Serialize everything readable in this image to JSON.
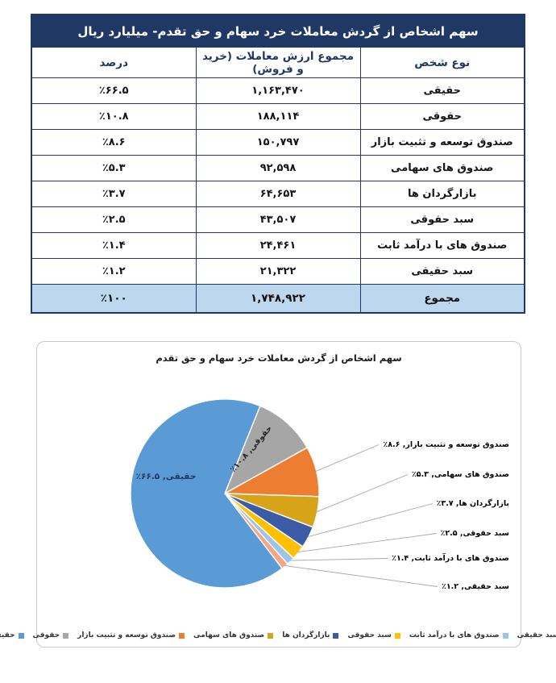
{
  "table": {
    "title": "سهم اشخاص از گردش معاملات خرد سهام و حق تقدم- میلیارد ریال",
    "headers": {
      "type": "نوع شخص",
      "value": "مجموع ارزش معاملات (خرید و فروش)",
      "percent": "درصد"
    },
    "rows": [
      {
        "type": "حقیقی",
        "value": "۱,۱۶۳,۴۷۰",
        "percent": "٪۶۶.۵"
      },
      {
        "type": "حقوقی",
        "value": "۱۸۸,۱۱۴",
        "percent": "٪۱۰.۸"
      },
      {
        "type": "صندوق توسعه و تثبیت بازار",
        "value": "۱۵۰,۷۹۷",
        "percent": "٪۸.۶"
      },
      {
        "type": "صندوق های سهامی",
        "value": "۹۲,۵۹۸",
        "percent": "٪۵.۳"
      },
      {
        "type": "بازارگردان ها",
        "value": "۶۴,۶۵۳",
        "percent": "٪۳.۷"
      },
      {
        "type": "سبد حقوقی",
        "value": "۴۳,۵۰۷",
        "percent": "٪۲.۵"
      },
      {
        "type": "صندوق های با درآمد ثابت",
        "value": "۲۴,۴۶۱",
        "percent": "٪۱.۴"
      },
      {
        "type": "سبد حقیقی",
        "value": "۲۱,۳۲۲",
        "percent": "٪۱.۲"
      }
    ],
    "total": {
      "type": "مجموع",
      "value": "۱,۷۴۸,۹۲۲",
      "percent": "٪۱۰۰"
    },
    "colors": {
      "header_bg": "#1F3864",
      "header_text": "#FFFFFF",
      "total_row_bg": "#BDD7EE",
      "border": "#1F3864"
    }
  },
  "chart_data": {
    "type": "pie",
    "title": "سهم اشخاص از گردش معاملات خرد سهام و حق تقدم",
    "legend_position": "bottom",
    "start_angle_deg": 22,
    "sweep_direction": "clockwise",
    "draw_order": [
      1,
      2,
      3,
      4,
      5,
      6,
      7,
      0
    ],
    "slices": [
      {
        "key": "haghighi",
        "name": "حقیقی",
        "pct": 66.5,
        "pct_label": "٪۶۶.۵",
        "value": "۱,۱۶۳,۴۷۰",
        "color": "#5B9BD5",
        "label_placement": "inside"
      },
      {
        "key": "hoghooghi",
        "name": "حقوقی",
        "pct": 10.8,
        "pct_label": "٪۱۰.۸",
        "value": "۱۸۸,۱۱۴",
        "color": "#A6A6A6",
        "label_placement": "inside-rotated"
      },
      {
        "key": "tosee-tasbit-fund",
        "name": "صندوق توسعه و تثبیت بازار",
        "pct": 8.6,
        "pct_label": "٪۸.۶",
        "value": "۱۵۰,۷۹۷",
        "color": "#ED7D31",
        "label_placement": "callout"
      },
      {
        "key": "equity-funds",
        "name": "صندوق های سهامی",
        "pct": 5.3,
        "pct_label": "٪۵.۳",
        "value": "۹۲,۵۹۸",
        "color": "#D6A319",
        "label_placement": "callout"
      },
      {
        "key": "market-makers",
        "name": "بازارگردان ها",
        "pct": 3.7,
        "pct_label": "٪۳.۷",
        "value": "۶۴,۶۵۳",
        "color": "#3B5BA6",
        "label_placement": "callout"
      },
      {
        "key": "sabad-hoghooghi",
        "name": "سبد حقوقی",
        "pct": 2.5,
        "pct_label": "٪۲.۵",
        "value": "۴۳,۵۰۷",
        "color": "#FFC000",
        "label_placement": "callout"
      },
      {
        "key": "fixed-income-funds",
        "name": "صندوق های با درآمد ثابت",
        "pct": 1.4,
        "pct_label": "٪۱.۴",
        "value": "۲۴,۴۶۱",
        "color": "#9DC3E6",
        "label_placement": "callout"
      },
      {
        "key": "sabad-haghighi",
        "name": "سبد حقیقی",
        "pct": 1.2,
        "pct_label": "٪۱.۲",
        "value": "۲۱,۳۲۲",
        "color": "#F4A583",
        "label_placement": "callout"
      }
    ]
  },
  "legend_order": [
    7,
    6,
    5,
    4,
    3,
    2,
    1,
    0
  ],
  "separator": ", "
}
